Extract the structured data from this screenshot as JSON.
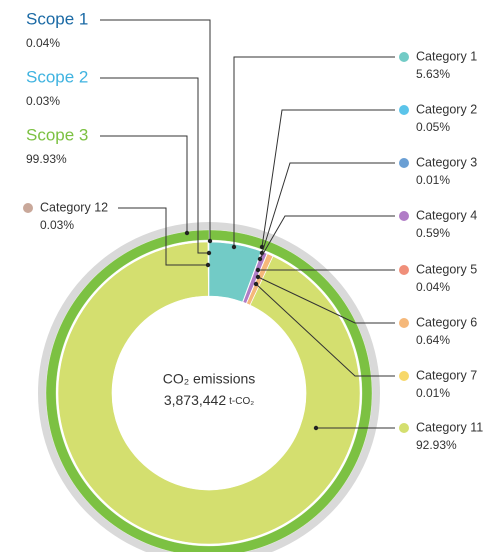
{
  "chart_data": {
    "type": "donut",
    "center_title": "CO₂ emissions",
    "center_value": "3,873,442",
    "center_unit": "t-CO₂",
    "rings": [
      {
        "labels": [
          "Scope 1",
          "Scope 2",
          "Scope 3"
        ],
        "values": [
          0.04,
          0.03,
          99.93
        ],
        "value_labels": [
          "0.04%",
          "0.03%",
          "99.93%"
        ],
        "colors": [
          "#1b6aa5",
          "#3fb3e0",
          "#7cc142"
        ]
      },
      {
        "labels": [
          "Category 1",
          "Category 2",
          "Category 3",
          "Category 4",
          "Category 5",
          "Category 6",
          "Category 7",
          "Category 11",
          "Category 12"
        ],
        "values": [
          5.63,
          0.05,
          0.01,
          0.59,
          0.04,
          0.64,
          0.01,
          92.93,
          0.03
        ],
        "value_labels": [
          "5.63%",
          "0.05%",
          "0.01%",
          "0.59%",
          "0.04%",
          "0.64%",
          "0.01%",
          "92.93%",
          "0.03%"
        ],
        "colors": [
          "#72cbc6",
          "#5bc4ea",
          "#6a9fd4",
          "#b07cc6",
          "#f08f7a",
          "#f5b87a",
          "#f7d86a",
          "#d4df6f",
          "#c9a89a"
        ]
      }
    ]
  }
}
